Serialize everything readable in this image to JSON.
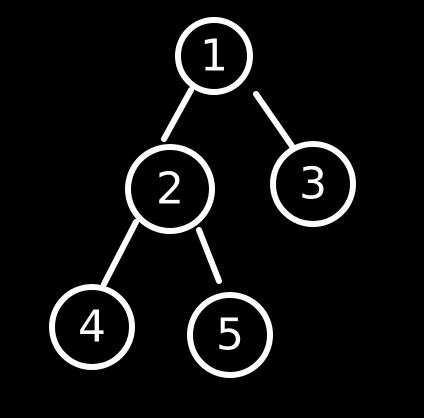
{
  "colors": {
    "background": "#000000",
    "stroke": "#ffffff"
  },
  "tree": {
    "nodes": [
      {
        "id": "1",
        "label": "1"
      },
      {
        "id": "2",
        "label": "2"
      },
      {
        "id": "3",
        "label": "3"
      },
      {
        "id": "4",
        "label": "4"
      },
      {
        "id": "5",
        "label": "5"
      }
    ],
    "edges": [
      {
        "from": "1",
        "to": "2"
      },
      {
        "from": "1",
        "to": "3"
      },
      {
        "from": "2",
        "to": "4"
      },
      {
        "from": "2",
        "to": "5"
      }
    ]
  }
}
